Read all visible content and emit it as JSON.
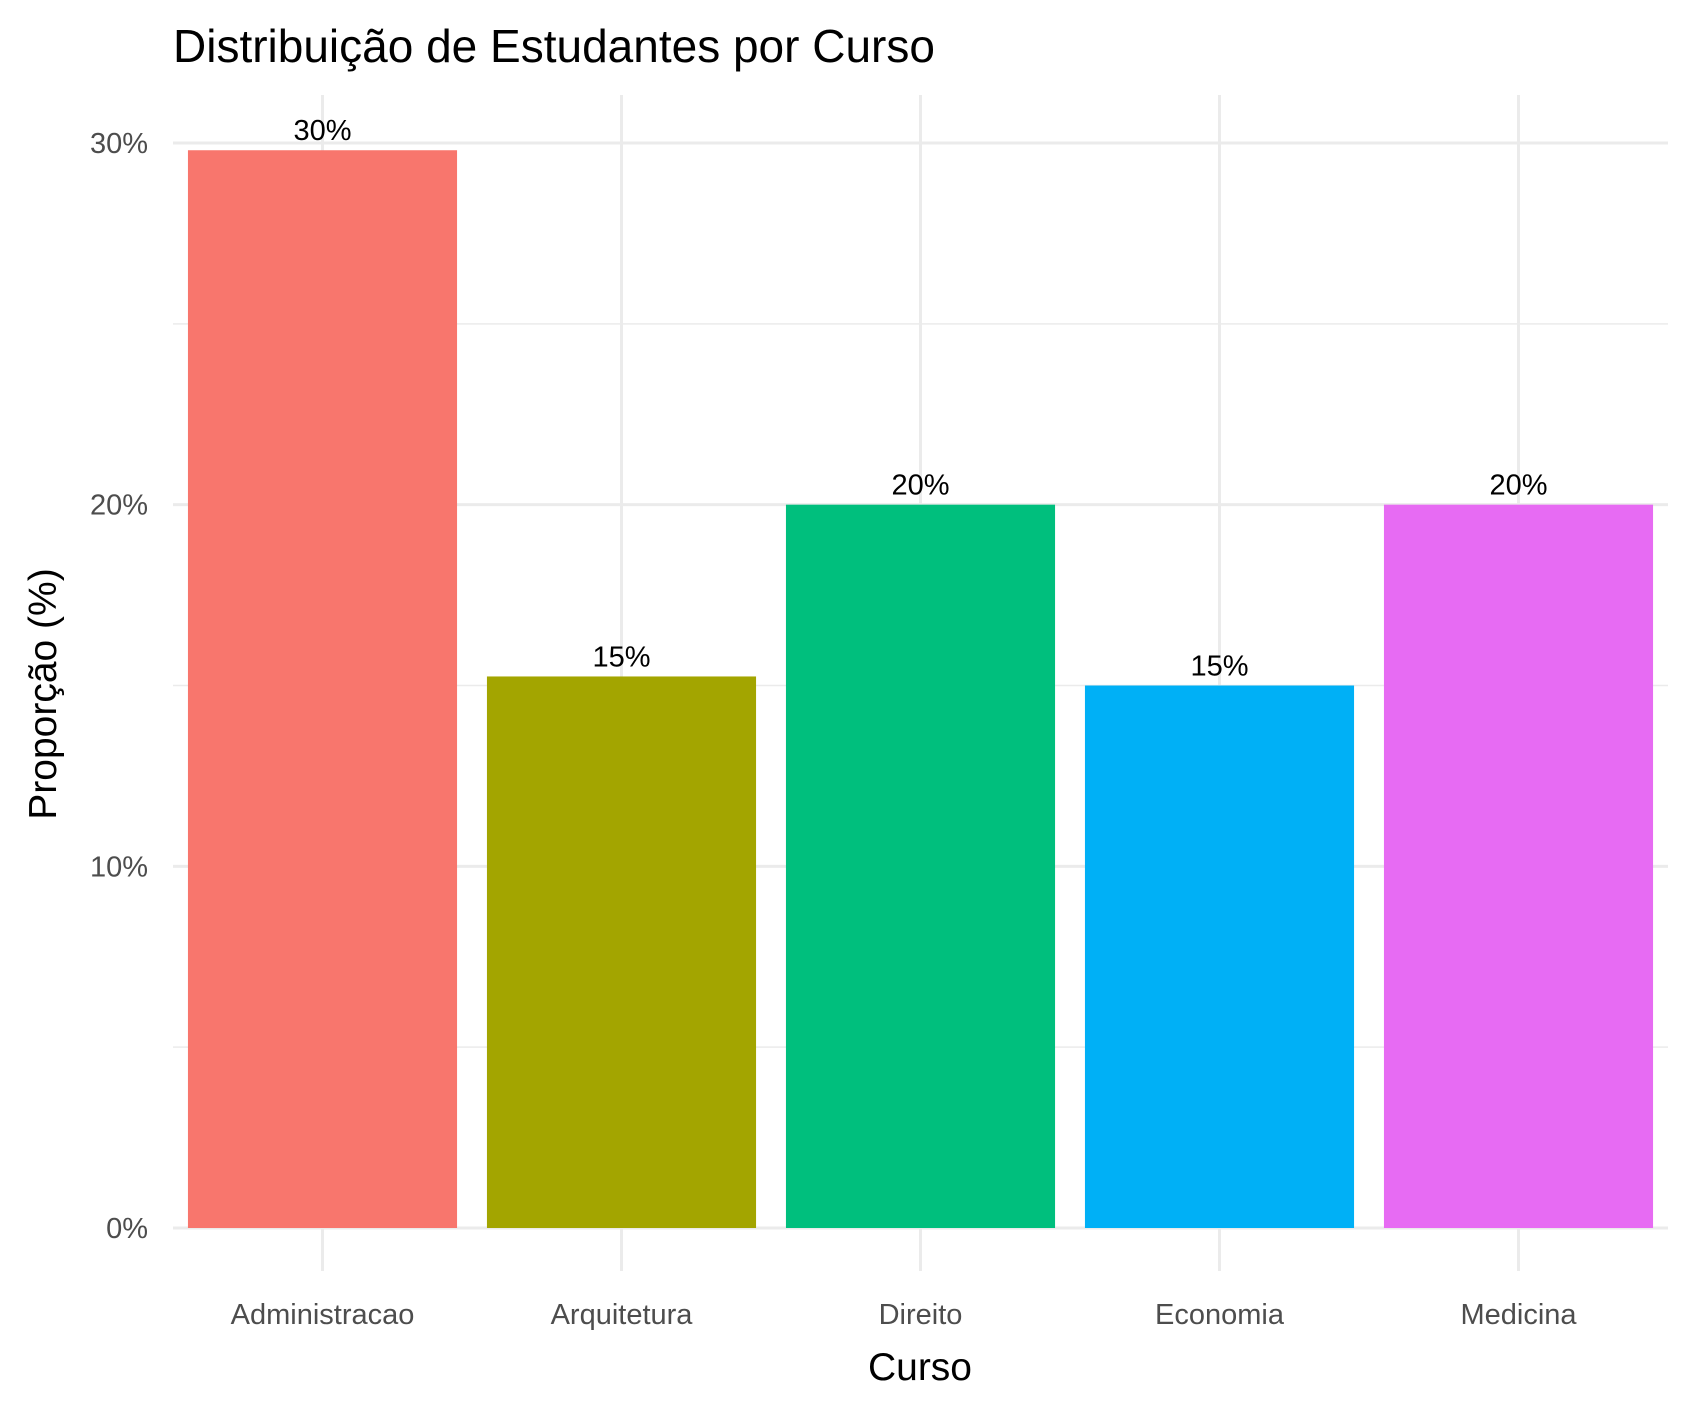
{
  "chart_data": {
    "type": "bar",
    "title": "Distribuição de Estudantes por Curso",
    "xlabel": "Curso",
    "ylabel": "Proporção (%)",
    "categories": [
      "Administracao",
      "Arquitetura",
      "Direito",
      "Economia",
      "Medicina"
    ],
    "values": [
      29.8,
      15.25,
      20,
      15,
      20
    ],
    "data_labels": [
      "30%",
      "15%",
      "20%",
      "15%",
      "20%"
    ],
    "colors": [
      "#F8766D",
      "#A3A500",
      "#00BF7D",
      "#00B0F6",
      "#E76BF3"
    ],
    "ylim": [
      0,
      30
    ],
    "yticks": [
      0,
      10,
      20,
      30
    ],
    "ytick_labels": [
      "0%",
      "10%",
      "20%",
      "30%"
    ],
    "grid": true,
    "legend": false
  }
}
